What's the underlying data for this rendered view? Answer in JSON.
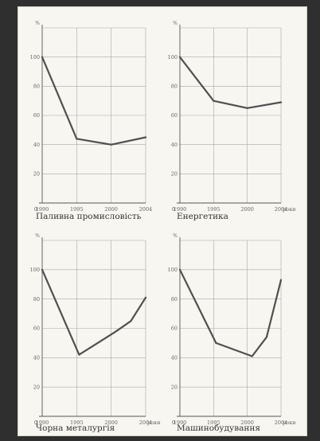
{
  "chart_data": [
    {
      "type": "line",
      "title": "Паливна промисловість",
      "ylabel": "%",
      "xlabel": "",
      "categories": [
        "1990",
        "1995",
        "2000",
        "2004"
      ],
      "series": [
        {
          "values": [
            100,
            44,
            40,
            45
          ]
        }
      ],
      "y_ticks": [
        "20",
        "40",
        "60",
        "80",
        "100"
      ],
      "origin_label": "0",
      "ylim": [
        0,
        120
      ]
    },
    {
      "type": "line",
      "title": "Енергетика",
      "ylabel": "%",
      "xlabel": "роки",
      "categories": [
        "1990",
        "1995",
        "2000",
        "2004"
      ],
      "series": [
        {
          "values": [
            100,
            70,
            65,
            69
          ]
        }
      ],
      "y_ticks": [
        "20",
        "40",
        "60",
        "80",
        "100"
      ],
      "origin_label": "0",
      "ylim": [
        0,
        120
      ]
    },
    {
      "type": "line",
      "title": "Чорна металургія",
      "ylabel": "%",
      "xlabel": "роки",
      "categories": [
        "1990",
        "1995",
        "2000",
        "2004"
      ],
      "series": [
        {
          "values": [
            100,
            42,
            58,
            65,
            81
          ],
          "x": [
            1990,
            1995,
            2000,
            2002,
            2004
          ]
        }
      ],
      "y_ticks": [
        "20",
        "40",
        "60",
        "80",
        "100"
      ],
      "origin_label": "0",
      "ylim": [
        0,
        120
      ]
    },
    {
      "type": "line",
      "title": "Машинобудування",
      "ylabel": "%",
      "xlabel": "роки",
      "categories": [
        "1990",
        "1995",
        "2000",
        "2004"
      ],
      "series": [
        {
          "values": [
            100,
            50,
            41,
            54,
            93
          ],
          "x": [
            1990,
            1995,
            2000,
            2002,
            2004
          ]
        }
      ],
      "y_ticks": [
        "20",
        "40",
        "60",
        "80",
        "100"
      ],
      "origin_label": "0",
      "ylim": [
        0,
        120
      ]
    }
  ]
}
